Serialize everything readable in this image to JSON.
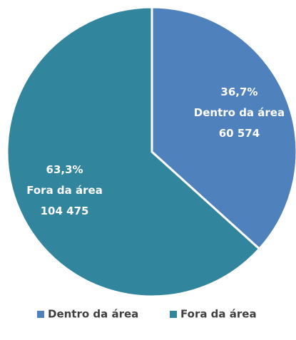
{
  "chart_data": {
    "type": "pie",
    "categories": [
      "Dentro da área",
      "Fora da área"
    ],
    "values": [
      60574,
      104475
    ],
    "value_labels": [
      "60 574",
      "104 475"
    ],
    "percentages": [
      36.7,
      63.3
    ],
    "percentage_labels": [
      "36,7%",
      "63,3%"
    ],
    "colors": [
      "#4f81bd",
      "#31859c"
    ],
    "legend": "bottom"
  }
}
